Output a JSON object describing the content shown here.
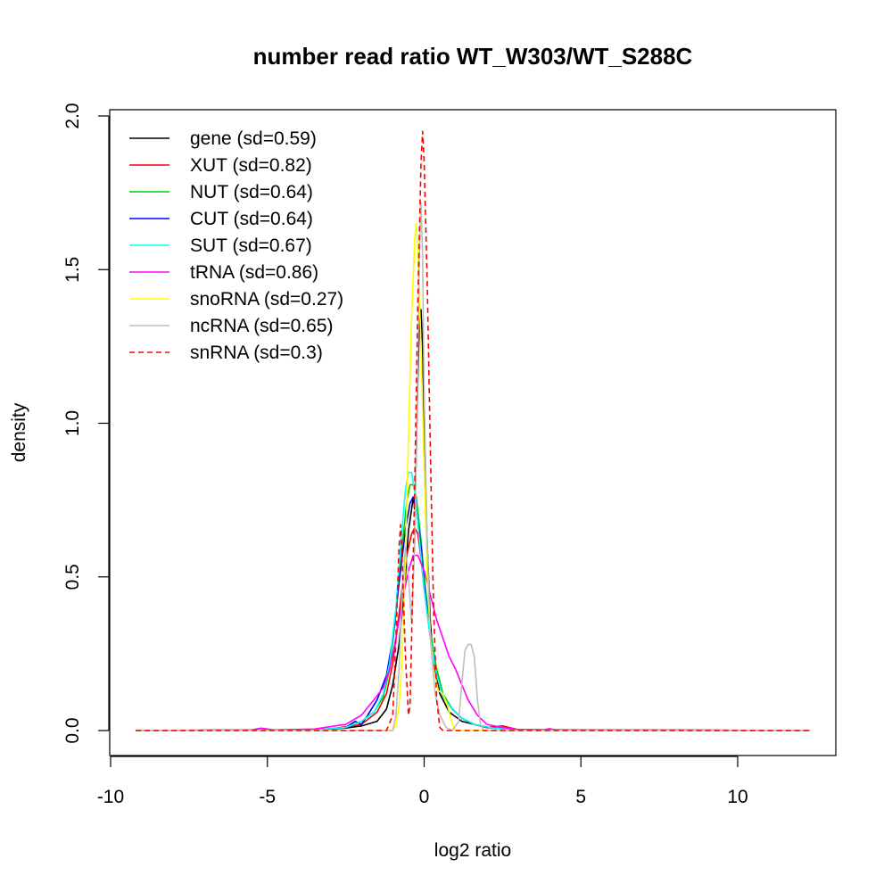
{
  "chart_data": {
    "type": "line",
    "title": "number read ratio WT_W303/WT_S288C",
    "xlabel": "log2 ratio",
    "ylabel": "density",
    "xlim": [
      -10,
      12.5
    ],
    "ylim": [
      0,
      2.0
    ],
    "x_ticks": [
      -10,
      -5,
      0,
      5,
      10
    ],
    "y_ticks": [
      0.0,
      0.5,
      1.0,
      1.5,
      2.0
    ],
    "x_tick_labels": [
      "-10",
      "-5",
      "0",
      "5",
      "10"
    ],
    "y_tick_labels": [
      "0.0",
      "0.5",
      "1.0",
      "1.5",
      "2.0"
    ],
    "grid": false,
    "legend_position": "top-left",
    "series": [
      {
        "name": "gene (sd=0.59)",
        "color": "#000000",
        "dash": "solid",
        "points": [
          [
            -9.2,
            0
          ],
          [
            -3.5,
            0.002
          ],
          [
            -2.5,
            0.008
          ],
          [
            -2.0,
            0.015
          ],
          [
            -1.5,
            0.03
          ],
          [
            -1.2,
            0.07
          ],
          [
            -1.0,
            0.15
          ],
          [
            -0.8,
            0.28
          ],
          [
            -0.6,
            0.5
          ],
          [
            -0.5,
            0.65
          ],
          [
            -0.4,
            0.72
          ],
          [
            -0.35,
            0.76
          ],
          [
            -0.3,
            0.72
          ],
          [
            -0.25,
            0.9
          ],
          [
            -0.2,
            1.15
          ],
          [
            -0.15,
            1.33
          ],
          [
            -0.1,
            1.37
          ],
          [
            -0.05,
            1.25
          ],
          [
            0.0,
            0.95
          ],
          [
            0.1,
            0.6
          ],
          [
            0.2,
            0.35
          ],
          [
            0.3,
            0.22
          ],
          [
            0.5,
            0.12
          ],
          [
            0.8,
            0.06
          ],
          [
            1.2,
            0.03
          ],
          [
            2.0,
            0.01
          ],
          [
            3.0,
            0.002
          ],
          [
            12.3,
            0
          ]
        ]
      },
      {
        "name": "XUT (sd=0.82)",
        "color": "#ff0000",
        "dash": "solid",
        "points": [
          [
            -9.2,
            0
          ],
          [
            -4.0,
            0.002
          ],
          [
            -3.0,
            0.005
          ],
          [
            -2.0,
            0.02
          ],
          [
            -1.5,
            0.06
          ],
          [
            -1.2,
            0.12
          ],
          [
            -1.0,
            0.22
          ],
          [
            -0.8,
            0.38
          ],
          [
            -0.6,
            0.55
          ],
          [
            -0.4,
            0.64
          ],
          [
            -0.3,
            0.66
          ],
          [
            -0.2,
            0.64
          ],
          [
            -0.1,
            0.56
          ],
          [
            0.0,
            0.46
          ],
          [
            0.2,
            0.3
          ],
          [
            0.4,
            0.18
          ],
          [
            0.6,
            0.11
          ],
          [
            0.9,
            0.07
          ],
          [
            1.2,
            0.04
          ],
          [
            1.6,
            0.02
          ],
          [
            2.0,
            0.01
          ],
          [
            2.5,
            0.015
          ],
          [
            3.0,
            0.003
          ],
          [
            12.3,
            0
          ]
        ]
      },
      {
        "name": "NUT (sd=0.64)",
        "color": "#00cd00",
        "dash": "solid",
        "points": [
          [
            -9.2,
            0
          ],
          [
            -3.5,
            0.002
          ],
          [
            -2.5,
            0.01
          ],
          [
            -2.0,
            0.03
          ],
          [
            -1.6,
            0.06
          ],
          [
            -1.3,
            0.11
          ],
          [
            -1.1,
            0.2
          ],
          [
            -0.9,
            0.38
          ],
          [
            -0.7,
            0.6
          ],
          [
            -0.55,
            0.75
          ],
          [
            -0.45,
            0.8
          ],
          [
            -0.35,
            0.8
          ],
          [
            -0.25,
            0.76
          ],
          [
            -0.1,
            0.62
          ],
          [
            0.0,
            0.5
          ],
          [
            0.2,
            0.32
          ],
          [
            0.4,
            0.2
          ],
          [
            0.6,
            0.12
          ],
          [
            0.9,
            0.07
          ],
          [
            1.2,
            0.04
          ],
          [
            1.6,
            0.02
          ],
          [
            2.2,
            0.008
          ],
          [
            3.0,
            0.002
          ],
          [
            12.3,
            0
          ]
        ]
      },
      {
        "name": "CUT (sd=0.64)",
        "color": "#0000ff",
        "dash": "solid",
        "points": [
          [
            -9.2,
            0
          ],
          [
            -3.5,
            0.002
          ],
          [
            -2.5,
            0.01
          ],
          [
            -2.2,
            0.03
          ],
          [
            -2.0,
            0.02
          ],
          [
            -1.8,
            0.05
          ],
          [
            -1.5,
            0.1
          ],
          [
            -1.2,
            0.18
          ],
          [
            -1.0,
            0.3
          ],
          [
            -0.8,
            0.48
          ],
          [
            -0.6,
            0.65
          ],
          [
            -0.45,
            0.74
          ],
          [
            -0.35,
            0.76
          ],
          [
            -0.25,
            0.72
          ],
          [
            -0.1,
            0.6
          ],
          [
            0.0,
            0.48
          ],
          [
            0.2,
            0.3
          ],
          [
            0.4,
            0.18
          ],
          [
            0.6,
            0.11
          ],
          [
            0.9,
            0.07
          ],
          [
            1.2,
            0.04
          ],
          [
            1.6,
            0.02
          ],
          [
            2.2,
            0.008
          ],
          [
            3.0,
            0.002
          ],
          [
            12.3,
            0
          ]
        ]
      },
      {
        "name": "SUT (sd=0.67)",
        "color": "#00ffff",
        "dash": "solid",
        "points": [
          [
            -9.2,
            0
          ],
          [
            -3.5,
            0.002
          ],
          [
            -2.5,
            0.01
          ],
          [
            -2.0,
            0.03
          ],
          [
            -1.6,
            0.06
          ],
          [
            -1.3,
            0.12
          ],
          [
            -1.1,
            0.22
          ],
          [
            -0.9,
            0.4
          ],
          [
            -0.75,
            0.6
          ],
          [
            -0.6,
            0.78
          ],
          [
            -0.5,
            0.84
          ],
          [
            -0.4,
            0.84
          ],
          [
            -0.3,
            0.78
          ],
          [
            -0.15,
            0.62
          ],
          [
            0.0,
            0.46
          ],
          [
            0.2,
            0.3
          ],
          [
            0.4,
            0.18
          ],
          [
            0.6,
            0.11
          ],
          [
            0.9,
            0.07
          ],
          [
            1.2,
            0.04
          ],
          [
            1.6,
            0.02
          ],
          [
            2.2,
            0.008
          ],
          [
            3.0,
            0.002
          ],
          [
            12.3,
            0
          ]
        ]
      },
      {
        "name": "tRNA (sd=0.86)",
        "color": "#ff00ff",
        "dash": "solid",
        "points": [
          [
            -9.2,
            0
          ],
          [
            -5.5,
            0.002
          ],
          [
            -5.2,
            0.008
          ],
          [
            -4.8,
            0.002
          ],
          [
            -3.5,
            0.005
          ],
          [
            -2.5,
            0.02
          ],
          [
            -2.0,
            0.05
          ],
          [
            -1.6,
            0.1
          ],
          [
            -1.3,
            0.14
          ],
          [
            -1.1,
            0.2
          ],
          [
            -0.9,
            0.3
          ],
          [
            -0.7,
            0.42
          ],
          [
            -0.5,
            0.52
          ],
          [
            -0.35,
            0.57
          ],
          [
            -0.2,
            0.57
          ],
          [
            0.0,
            0.52
          ],
          [
            0.2,
            0.44
          ],
          [
            0.4,
            0.36
          ],
          [
            0.6,
            0.3
          ],
          [
            0.8,
            0.24
          ],
          [
            1.0,
            0.2
          ],
          [
            1.2,
            0.15
          ],
          [
            1.4,
            0.1
          ],
          [
            1.7,
            0.05
          ],
          [
            2.0,
            0.02
          ],
          [
            2.5,
            0.01
          ],
          [
            3.0,
            0.003
          ],
          [
            3.8,
            0.002
          ],
          [
            4.0,
            0.006
          ],
          [
            4.2,
            0.002
          ],
          [
            12.3,
            0
          ]
        ]
      },
      {
        "name": "snoRNA (sd=0.27)",
        "color": "#ffff00",
        "dash": "solid",
        "points": [
          [
            -9.2,
            0
          ],
          [
            -1.0,
            0.0
          ],
          [
            -0.9,
            0.02
          ],
          [
            -0.8,
            0.08
          ],
          [
            -0.7,
            0.25
          ],
          [
            -0.6,
            0.55
          ],
          [
            -0.5,
            0.95
          ],
          [
            -0.4,
            1.35
          ],
          [
            -0.3,
            1.6
          ],
          [
            -0.25,
            1.65
          ],
          [
            -0.2,
            1.55
          ],
          [
            -0.1,
            1.25
          ],
          [
            0.0,
            0.85
          ],
          [
            0.1,
            0.5
          ],
          [
            0.2,
            0.3
          ],
          [
            0.3,
            0.2
          ],
          [
            0.45,
            0.13
          ],
          [
            0.6,
            0.12
          ],
          [
            0.75,
            0.08
          ],
          [
            0.9,
            0.02
          ],
          [
            1.0,
            0.0
          ],
          [
            12.3,
            0
          ]
        ]
      },
      {
        "name": "ncRNA (sd=0.65)",
        "color": "#bebebe",
        "dash": "solid",
        "points": [
          [
            -9.2,
            0
          ],
          [
            -1.0,
            0.0
          ],
          [
            -0.9,
            0.05
          ],
          [
            -0.8,
            0.2
          ],
          [
            -0.7,
            0.45
          ],
          [
            -0.6,
            0.6
          ],
          [
            -0.5,
            0.5
          ],
          [
            -0.4,
            0.35
          ],
          [
            -0.3,
            0.6
          ],
          [
            -0.2,
            1.2
          ],
          [
            -0.15,
            1.55
          ],
          [
            -0.1,
            1.72
          ],
          [
            -0.05,
            1.55
          ],
          [
            0.0,
            1.1
          ],
          [
            0.1,
            0.6
          ],
          [
            0.2,
            0.3
          ],
          [
            0.35,
            0.12
          ],
          [
            0.5,
            0.05
          ],
          [
            0.7,
            0.01
          ],
          [
            0.9,
            0.0
          ],
          [
            1.1,
            0.03
          ],
          [
            1.2,
            0.15
          ],
          [
            1.3,
            0.26
          ],
          [
            1.4,
            0.28
          ],
          [
            1.5,
            0.28
          ],
          [
            1.6,
            0.24
          ],
          [
            1.7,
            0.1
          ],
          [
            1.8,
            0.02
          ],
          [
            1.9,
            0.0
          ],
          [
            12.3,
            0
          ]
        ]
      },
      {
        "name": "snRNA (sd=0.3)",
        "color": "#ff0000",
        "dash": "dashed",
        "points": [
          [
            -9.2,
            0
          ],
          [
            -1.2,
            0.0
          ],
          [
            -1.0,
            0.05
          ],
          [
            -0.9,
            0.3
          ],
          [
            -0.8,
            0.6
          ],
          [
            -0.75,
            0.67
          ],
          [
            -0.7,
            0.55
          ],
          [
            -0.6,
            0.25
          ],
          [
            -0.5,
            0.05
          ],
          [
            -0.45,
            0.08
          ],
          [
            -0.4,
            0.3
          ],
          [
            -0.3,
            0.8
          ],
          [
            -0.2,
            1.4
          ],
          [
            -0.1,
            1.85
          ],
          [
            -0.05,
            1.95
          ],
          [
            0.0,
            1.85
          ],
          [
            0.1,
            1.45
          ],
          [
            0.2,
            0.9
          ],
          [
            0.3,
            0.4
          ],
          [
            0.4,
            0.1
          ],
          [
            0.5,
            0.01
          ],
          [
            0.6,
            0.0
          ],
          [
            12.3,
            0
          ]
        ]
      }
    ]
  }
}
